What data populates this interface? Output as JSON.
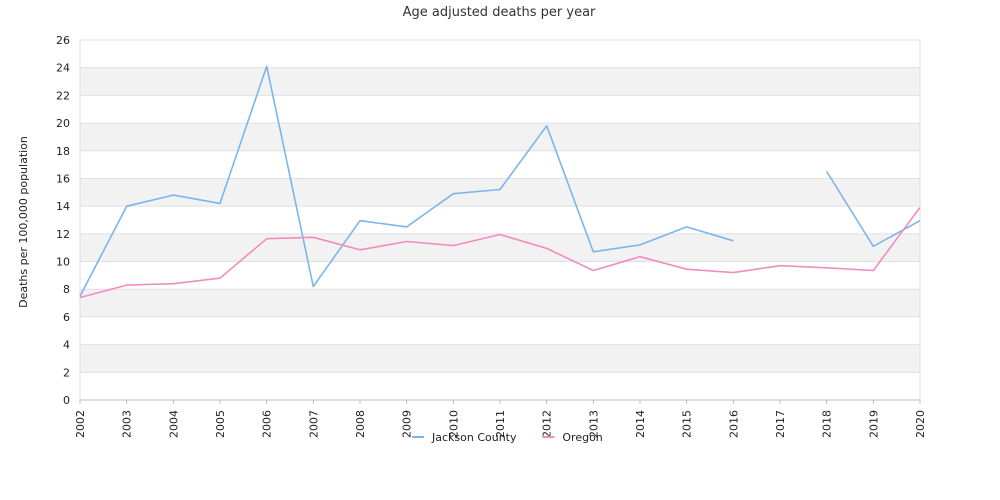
{
  "chart_data": {
    "type": "line",
    "title": "Age adjusted deaths per year",
    "ylabel": "Deaths per 100,000 population",
    "xlabel": "",
    "ylim": [
      0,
      26
    ],
    "yticks": [
      0,
      2,
      4,
      6,
      8,
      10,
      12,
      14,
      16,
      18,
      20,
      22,
      24,
      26
    ],
    "x": [
      "2002",
      "2003",
      "2004",
      "2005",
      "2006",
      "2007",
      "2008",
      "2009",
      "2010",
      "2011",
      "2012",
      "2013",
      "2014",
      "2015",
      "2016",
      "2017",
      "2018",
      "2019",
      "2020"
    ],
    "grid": "horizontal alternating bands",
    "legend_position": "bottom",
    "series": [
      {
        "name": "Jackson County",
        "color": "#7cb5ec",
        "values": [
          7.5,
          14.0,
          14.8,
          14.2,
          24.1,
          8.2,
          12.95,
          12.5,
          14.9,
          15.2,
          19.8,
          10.7,
          11.2,
          12.5,
          11.5,
          null,
          16.5,
          11.1,
          12.95
        ]
      },
      {
        "name": "Oregon",
        "color": "#f28cbf",
        "values": [
          7.4,
          8.3,
          8.4,
          8.8,
          11.65,
          11.75,
          10.85,
          11.45,
          11.15,
          11.95,
          10.95,
          9.35,
          10.35,
          9.45,
          9.2,
          9.7,
          9.55,
          9.35,
          13.9
        ]
      }
    ]
  }
}
